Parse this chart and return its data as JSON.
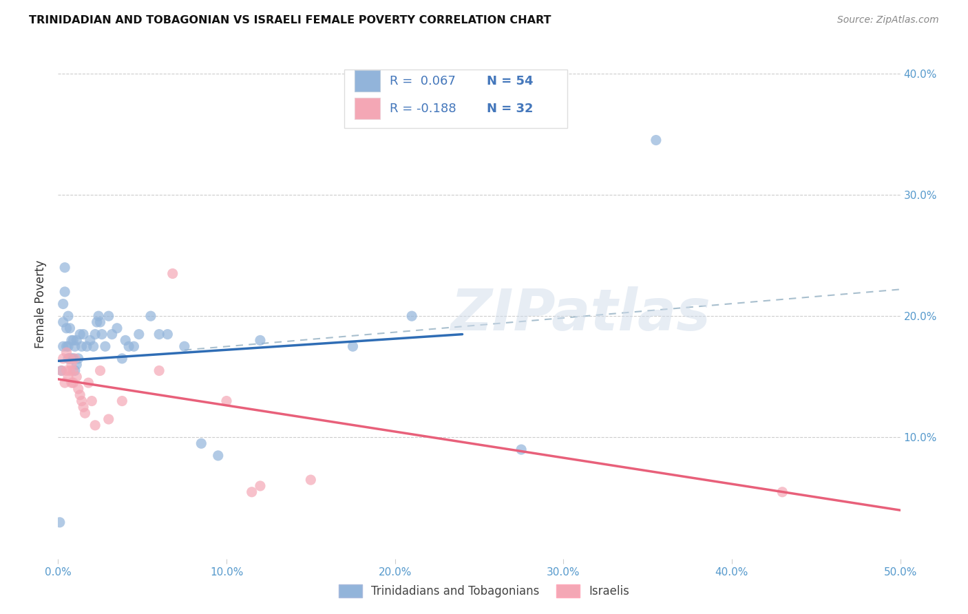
{
  "title": "TRINIDADIAN AND TOBAGONIAN VS ISRAELI FEMALE POVERTY CORRELATION CHART",
  "source": "Source: ZipAtlas.com",
  "ylabel": "Female Poverty",
  "xlim": [
    0.0,
    0.5
  ],
  "ylim": [
    0.0,
    0.42
  ],
  "xticks": [
    0.0,
    0.1,
    0.2,
    0.3,
    0.4,
    0.5
  ],
  "xtick_labels": [
    "0.0%",
    "10.0%",
    "20.0%",
    "30.0%",
    "40.0%",
    "50.0%"
  ],
  "ytick_labels_right": [
    "10.0%",
    "20.0%",
    "30.0%",
    "40.0%"
  ],
  "yticks_right": [
    0.1,
    0.2,
    0.3,
    0.4
  ],
  "legend_blue_r": "0.067",
  "legend_blue_n": "54",
  "legend_pink_r": "-0.188",
  "legend_pink_n": "32",
  "legend_label_blue": "Trinidadians and Tobagonians",
  "legend_label_pink": "Israelis",
  "blue_color": "#92B4DA",
  "pink_color": "#F4A7B5",
  "trendline_blue_color": "#2F6DB5",
  "trendline_pink_color": "#E8607A",
  "trendline_dashed_color": "#A8BFCE",
  "watermark": "ZIPatlas",
  "blue_x": [
    0.001,
    0.002,
    0.003,
    0.003,
    0.003,
    0.004,
    0.004,
    0.005,
    0.005,
    0.006,
    0.006,
    0.006,
    0.007,
    0.007,
    0.008,
    0.008,
    0.009,
    0.009,
    0.01,
    0.01,
    0.011,
    0.011,
    0.012,
    0.013,
    0.014,
    0.015,
    0.017,
    0.019,
    0.021,
    0.022,
    0.023,
    0.024,
    0.025,
    0.026,
    0.028,
    0.03,
    0.032,
    0.035,
    0.038,
    0.04,
    0.042,
    0.045,
    0.048,
    0.055,
    0.06,
    0.065,
    0.075,
    0.085,
    0.095,
    0.12,
    0.175,
    0.21,
    0.275,
    0.355
  ],
  "blue_y": [
    0.03,
    0.155,
    0.175,
    0.195,
    0.21,
    0.22,
    0.24,
    0.175,
    0.19,
    0.165,
    0.175,
    0.2,
    0.165,
    0.19,
    0.165,
    0.18,
    0.165,
    0.18,
    0.155,
    0.175,
    0.16,
    0.18,
    0.165,
    0.185,
    0.175,
    0.185,
    0.175,
    0.18,
    0.175,
    0.185,
    0.195,
    0.2,
    0.195,
    0.185,
    0.175,
    0.2,
    0.185,
    0.19,
    0.165,
    0.18,
    0.175,
    0.175,
    0.185,
    0.2,
    0.185,
    0.185,
    0.175,
    0.095,
    0.085,
    0.18,
    0.175,
    0.2,
    0.09,
    0.345
  ],
  "pink_x": [
    0.002,
    0.003,
    0.004,
    0.005,
    0.005,
    0.006,
    0.007,
    0.007,
    0.008,
    0.008,
    0.009,
    0.009,
    0.01,
    0.011,
    0.012,
    0.013,
    0.014,
    0.015,
    0.016,
    0.018,
    0.02,
    0.022,
    0.025,
    0.03,
    0.038,
    0.06,
    0.068,
    0.1,
    0.115,
    0.12,
    0.15,
    0.43
  ],
  "pink_y": [
    0.155,
    0.165,
    0.145,
    0.155,
    0.17,
    0.15,
    0.155,
    0.165,
    0.145,
    0.16,
    0.145,
    0.155,
    0.165,
    0.15,
    0.14,
    0.135,
    0.13,
    0.125,
    0.12,
    0.145,
    0.13,
    0.11,
    0.155,
    0.115,
    0.13,
    0.155,
    0.235,
    0.13,
    0.055,
    0.06,
    0.065,
    0.055
  ],
  "blue_trendline_x0": 0.0,
  "blue_trendline_y0": 0.163,
  "blue_trendline_x1": 0.24,
  "blue_trendline_y1": 0.185,
  "pink_trendline_x0": 0.0,
  "pink_trendline_y0": 0.148,
  "pink_trendline_x1": 0.5,
  "pink_trendline_y1": 0.04,
  "dashed_trendline_x0": 0.075,
  "dashed_trendline_y0": 0.172,
  "dashed_trendline_x1": 0.5,
  "dashed_trendline_y1": 0.222
}
